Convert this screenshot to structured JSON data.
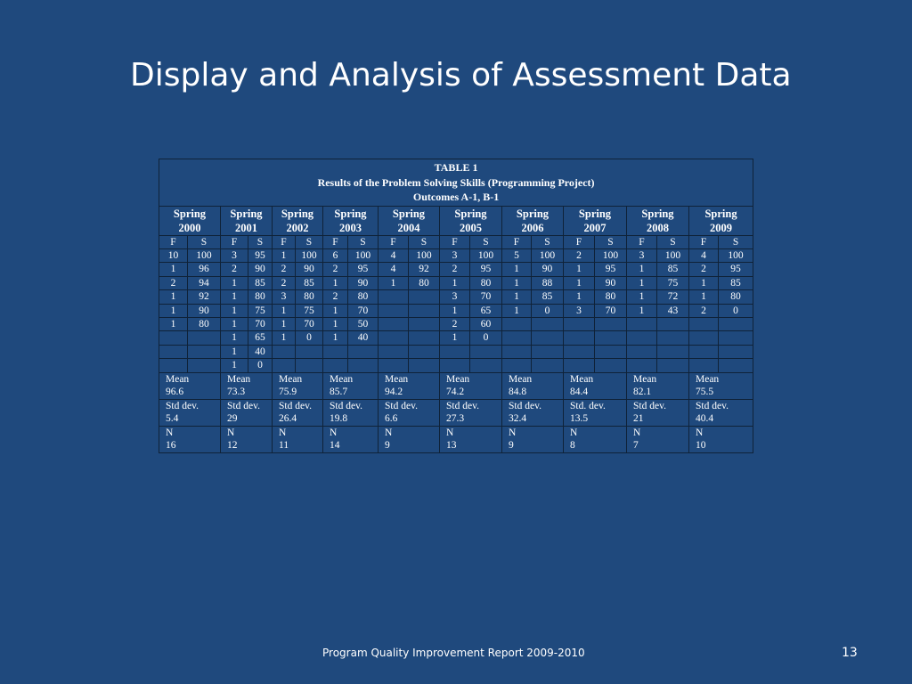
{
  "title": "Display and Analysis of Assessment Data",
  "table": {
    "caption": [
      "TABLE 1",
      "Results of the Problem Solving Skills (Programming Project)",
      "Outcomes A-1, B-1"
    ],
    "semesters": [
      [
        "Spring",
        "2000"
      ],
      [
        "Spring",
        "2001"
      ],
      [
        "Spring",
        "2002"
      ],
      [
        "Spring",
        "2003"
      ],
      [
        "Spring",
        "2004"
      ],
      [
        "Spring",
        "2005"
      ],
      [
        "Spring",
        "2006"
      ],
      [
        "Spring",
        "2007"
      ],
      [
        "Spring",
        "2008"
      ],
      [
        "Spring",
        "2009"
      ]
    ],
    "col_headers": [
      "F",
      "S"
    ],
    "rows": [
      [
        "10",
        "100",
        "3",
        "95",
        "1",
        "100",
        "6",
        "100",
        "4",
        "100",
        "3",
        "100",
        "5",
        "100",
        "2",
        "100",
        "3",
        "100",
        "4",
        "100"
      ],
      [
        "1",
        "96",
        "2",
        "90",
        "2",
        "90",
        "2",
        "95",
        "4",
        "92",
        "2",
        "95",
        "1",
        "90",
        "1",
        "95",
        "1",
        "85",
        "2",
        "95"
      ],
      [
        "2",
        "94",
        "1",
        "85",
        "2",
        "85",
        "1",
        "90",
        "1",
        "80",
        "1",
        "80",
        "1",
        "88",
        "1",
        "90",
        "1",
        "75",
        "1",
        "85"
      ],
      [
        "1",
        "92",
        "1",
        "80",
        "3",
        "80",
        "2",
        "80",
        "",
        "",
        "3",
        "70",
        "1",
        "85",
        "1",
        "80",
        "1",
        "72",
        "1",
        "80"
      ],
      [
        "1",
        "90",
        "1",
        "75",
        "1",
        "75",
        "1",
        "70",
        "",
        "",
        "1",
        "65",
        "1",
        "0",
        "3",
        "70",
        "1",
        "43",
        "2",
        "0"
      ],
      [
        "1",
        "80",
        "1",
        "70",
        "1",
        "70",
        "1",
        "50",
        "",
        "",
        "2",
        "60",
        "",
        "",
        "",
        "",
        "",
        "",
        "",
        ""
      ],
      [
        "",
        "",
        "1",
        "65",
        "1",
        "0",
        "1",
        "40",
        "",
        "",
        "1",
        "0",
        "",
        "",
        "",
        "",
        "",
        "",
        "",
        ""
      ],
      [
        "",
        "",
        "1",
        "40",
        "",
        "",
        "",
        "",
        "",
        "",
        "",
        "",
        "",
        "",
        "",
        "",
        "",
        "",
        "",
        ""
      ],
      [
        "",
        "",
        "1",
        "0",
        "",
        "",
        "",
        "",
        "",
        "",
        "",
        "",
        "",
        "",
        "",
        "",
        "",
        "",
        "",
        ""
      ]
    ],
    "stats": [
      {
        "label": "Mean",
        "values": [
          "96.6",
          "73.3",
          "75.9",
          "85.7",
          "94.2",
          "74.2",
          "84.8",
          "84.4",
          "82.1",
          "75.5"
        ]
      },
      {
        "label": "Std dev.",
        "labels": [
          "Std dev.",
          "Std dev.",
          "Std dev.",
          "Std dev.",
          "Std dev.",
          "Std dev.",
          "Std dev.",
          "Std. dev.",
          "Std dev.",
          "Std dev."
        ],
        "values": [
          "5.4",
          "29",
          "26.4",
          "19.8",
          "6.6",
          "27.3",
          "32.4",
          "13.5",
          "21",
          "40.4"
        ]
      },
      {
        "label": "N",
        "values": [
          "16",
          "12",
          "11",
          "14",
          "9",
          "13",
          "9",
          "8",
          "7",
          "10"
        ]
      }
    ]
  },
  "footer": "Program Quality Improvement Report 2009-2010",
  "page_number": "13"
}
